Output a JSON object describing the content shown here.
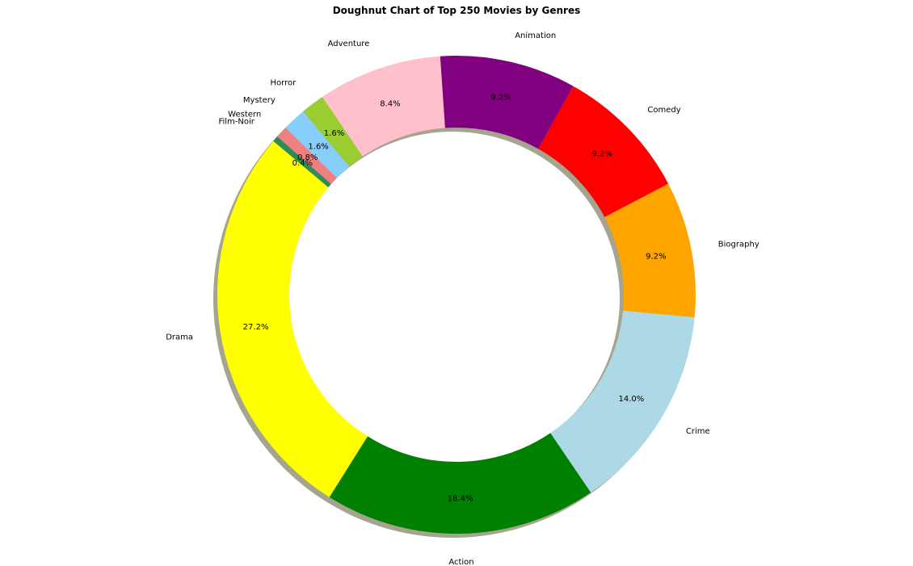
{
  "chart_data": {
    "type": "pie",
    "variant": "doughnut",
    "title": "Doughnut Chart of Top 250 Movies by Genres",
    "start_angle_deg": 140,
    "direction": "counterclockwise",
    "shadow": true,
    "slices": [
      {
        "label": "Drama",
        "value": 27.2,
        "pct_label": "27.2%",
        "color": "#ffff00"
      },
      {
        "label": "Action",
        "value": 18.4,
        "pct_label": "18.4%",
        "color": "#008000"
      },
      {
        "label": "Crime",
        "value": 14.0,
        "pct_label": "14.0%",
        "color": "#add8e6"
      },
      {
        "label": "Biography",
        "value": 9.2,
        "pct_label": "9.2%",
        "color": "#ffa500"
      },
      {
        "label": "Comedy",
        "value": 9.2,
        "pct_label": "9.2%",
        "color": "#ff0000"
      },
      {
        "label": "Animation",
        "value": 9.2,
        "pct_label": "9.2%",
        "color": "#800080"
      },
      {
        "label": "Adventure",
        "value": 8.4,
        "pct_label": "8.4%",
        "color": "#ffc0cb"
      },
      {
        "label": "Horror",
        "value": 1.6,
        "pct_label": "1.6%",
        "color": "#9acd32"
      },
      {
        "label": "Mystery",
        "value": 1.6,
        "pct_label": "1.6%",
        "color": "#87cefa"
      },
      {
        "label": "Western",
        "value": 0.8,
        "pct_label": "0.8%",
        "color": "#f08080"
      },
      {
        "label": "Film-Noir",
        "value": 0.4,
        "pct_label": "0.4%",
        "color": "#2e8b57"
      }
    ]
  }
}
